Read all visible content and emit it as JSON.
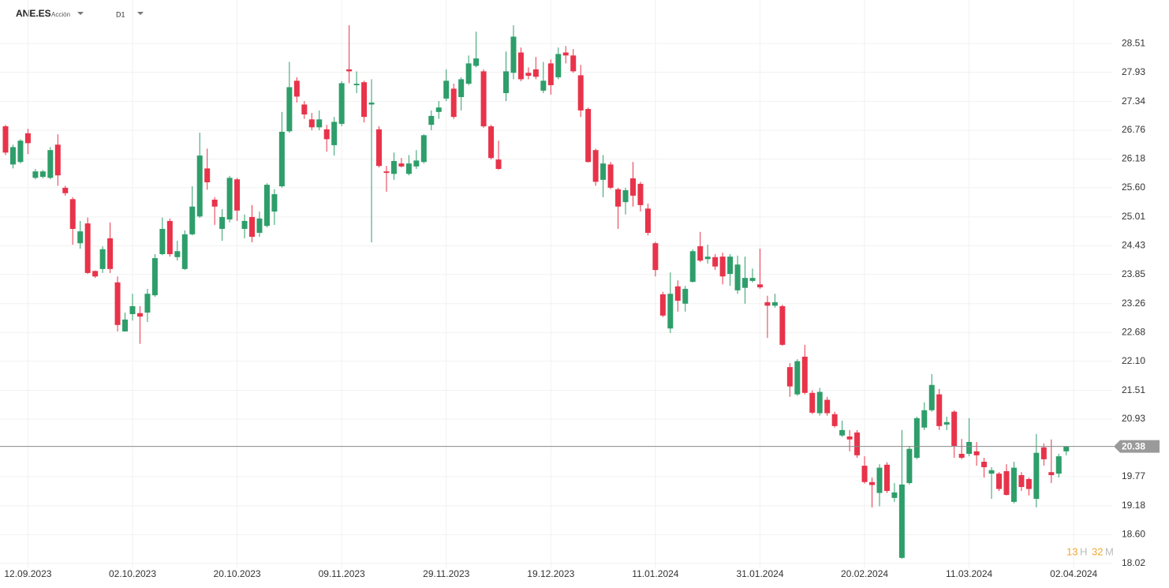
{
  "header": {
    "symbol": "ANE.ES",
    "kind": "Acción",
    "timeframe": "D1"
  },
  "countdown": {
    "hours": 13,
    "hours_unit": "H",
    "minutes": 32,
    "minutes_unit": "M"
  },
  "chart_data": {
    "type": "candlestick",
    "up_color": "#2e9e6a",
    "down_color": "#e8334a",
    "grid": true,
    "last_price": 20.38,
    "last_price_color": "#9a9a9a",
    "ylim": [
      17.92,
      29.31
    ],
    "yticks": [
      28.51,
      27.93,
      27.34,
      26.76,
      26.18,
      {
        "value": 25.6,
        "label": "25.60"
      },
      25.01,
      24.43,
      23.85,
      23.26,
      22.68,
      {
        "value": 22.1,
        "label": "22.10"
      },
      21.51,
      20.93,
      19.77,
      19.18,
      {
        "value": 18.6,
        "label": "18.60"
      },
      18.02
    ],
    "categories": [
      null,
      null,
      null,
      "12.09.2023",
      null,
      null,
      null,
      null,
      null,
      null,
      null,
      null,
      null,
      null,
      null,
      null,
      null,
      "02.10.2023",
      null,
      null,
      null,
      null,
      null,
      null,
      null,
      null,
      null,
      null,
      null,
      null,
      null,
      "20.10.2023",
      null,
      null,
      null,
      null,
      null,
      null,
      null,
      null,
      null,
      null,
      null,
      null,
      null,
      "09.11.2023",
      null,
      null,
      null,
      null,
      null,
      null,
      null,
      null,
      null,
      null,
      null,
      null,
      null,
      "29.11.2023",
      null,
      null,
      null,
      null,
      null,
      null,
      null,
      null,
      null,
      null,
      null,
      null,
      null,
      "19.12.2023",
      null,
      null,
      null,
      null,
      null,
      null,
      null,
      null,
      null,
      null,
      null,
      null,
      null,
      "11.01.2024",
      null,
      null,
      null,
      null,
      null,
      null,
      null,
      null,
      null,
      null,
      null,
      null,
      null,
      "31.01.2024",
      null,
      null,
      null,
      null,
      null,
      null,
      null,
      null,
      null,
      null,
      null,
      null,
      null,
      "20.02.2024",
      null,
      null,
      null,
      null,
      null,
      null,
      null,
      null,
      null,
      null,
      null,
      null,
      null,
      "11.03.2024",
      null,
      null,
      null,
      null,
      null,
      null,
      null,
      null,
      null,
      null,
      null,
      null,
      null,
      "02.04.2024"
    ],
    "open": [
      26.84,
      26.07,
      26.12,
      26.7,
      25.8,
      25.82,
      25.8,
      26.47,
      25.6,
      25.37,
      24.48,
      24.88,
      23.92,
      23.96,
      24.58,
      23.69,
      22.7,
      23.05,
      23.07,
      23.08,
      23.43,
      24.26,
      24.93,
      24.2,
      23.96,
      24.66,
      25.02,
      25.99,
      25.36,
      24.77,
      24.96,
      25.77,
      24.77,
      25.01,
      24.69,
      24.83,
      25.12,
      25.63,
      26.74,
      27.76,
      27.28,
      26.98,
      26.82,
      26.78,
      26.46,
      26.89,
      27.99,
      27.67,
      27.73,
      27.28,
      26.78,
      25.93,
      25.88,
      26.09,
      25.88,
      26.03,
      26.12,
      26.87,
      27.13,
      27.4,
      27.6,
      27.43,
      27.7,
      28.06,
      27.95,
      26.84,
      26.17,
      27.51,
      27.92,
      28.33,
      27.92,
      27.99,
      27.56,
      28.11,
      27.83,
      28.33,
      28.27,
      27.87,
      27.19,
      26.36,
      25.76,
      26.07,
      25.57,
      25.31,
      25.79,
      25.68,
      25.18,
      24.48,
      23.45,
      22.76,
      23.61,
      23.26,
      23.7,
      24.42,
      24.16,
      24.2,
      24.21,
      23.86,
      23.53,
      23.58,
      23.72,
      23.65,
      23.29,
      23.22,
      23.21,
      21.98,
      21.43,
      22.19,
      21.46,
      21.05,
      21.32,
      21.03,
      20.6,
      20.58,
      20.66,
      19.99,
      19.66,
      19.44,
      20.01,
      19.34,
      18.13,
      19.64,
      20.15,
      20.76,
      21.11,
      21.43,
      20.82,
      21.08,
      20.23,
      20.23,
      20.28,
      20.07,
      19.83,
      19.83,
      19.88,
      19.26,
      19.8,
      19.72,
      19.32,
      20.36,
      19.86,
      19.83,
      20.28,
      null
    ],
    "high": [
      26.87,
      26.47,
      26.58,
      26.79,
      25.98,
      25.96,
      26.42,
      26.68,
      25.64,
      25.41,
      24.93,
      25.0,
      23.93,
      24.42,
      24.9,
      23.81,
      23.08,
      23.46,
      23.21,
      23.56,
      24.26,
      25.0,
      24.98,
      24.53,
      24.74,
      25.63,
      26.71,
      26.39,
      25.41,
      25.17,
      25.84,
      25.8,
      25.06,
      25.25,
      25.12,
      25.69,
      25.57,
      27.13,
      28.14,
      27.83,
      27.35,
      27.11,
      27.16,
      26.87,
      27.03,
      27.75,
      28.88,
      27.95,
      27.76,
      27.79,
      26.84,
      26.04,
      26.31,
      26.2,
      26.26,
      26.36,
      26.68,
      27.16,
      27.35,
      27.99,
      27.7,
      27.83,
      28.27,
      28.75,
      27.99,
      26.87,
      26.55,
      28.35,
      28.88,
      28.43,
      28.03,
      28.24,
      28.14,
      28.19,
      28.43,
      28.46,
      28.4,
      28.08,
      27.22,
      26.39,
      26.26,
      26.12,
      25.6,
      25.6,
      26.12,
      25.72,
      25.28,
      24.51,
      23.5,
      23.89,
      23.73,
      23.62,
      24.36,
      24.71,
      24.45,
      24.26,
      24.29,
      24.26,
      24.23,
      24.21,
      23.97,
      24.37,
      23.42,
      23.46,
      23.24,
      22.06,
      22.14,
      22.43,
      21.51,
      21.56,
      21.38,
      21.08,
      20.9,
      20.71,
      20.71,
      20.18,
      19.75,
      20.02,
      20.06,
      19.64,
      20.71,
      20.39,
      20.98,
      21.27,
      21.84,
      21.54,
      20.98,
      21.11,
      20.53,
      20.95,
      20.47,
      20.15,
      19.96,
      19.86,
      20.02,
      20.07,
      19.86,
      19.75,
      20.63,
      20.44,
      20.52,
      20.23,
      20.39,
      null
    ],
    "low": [
      26.26,
      25.99,
      26.09,
      26.28,
      25.77,
      25.79,
      25.77,
      25.64,
      25.44,
      24.45,
      24.37,
      23.86,
      23.78,
      23.88,
      23.88,
      22.7,
      22.7,
      22.92,
      22.45,
      22.89,
      23.4,
      24.24,
      24.21,
      24.13,
      23.94,
      24.64,
      24.99,
      25.56,
      24.85,
      24.53,
      24.9,
      24.93,
      24.58,
      24.5,
      24.61,
      24.8,
      24.85,
      25.6,
      26.71,
      27.32,
      26.99,
      26.76,
      26.76,
      26.33,
      26.25,
      26.84,
      27.71,
      27.51,
      26.92,
      24.5,
      26.01,
      25.52,
      25.76,
      26.01,
      25.85,
      25.98,
      26.09,
      26.76,
      26.99,
      27.35,
      26.99,
      27.16,
      27.67,
      28.03,
      26.81,
      26.17,
      25.96,
      27.35,
      27.79,
      27.75,
      27.79,
      27.79,
      27.51,
      27.48,
      27.79,
      28.11,
      27.92,
      27.03,
      26.11,
      25.64,
      25.41,
      25.57,
      24.77,
      25.06,
      25.22,
      25.12,
      24.64,
      23.81,
      22.99,
      22.67,
      23.1,
      23.1,
      23.69,
      24.1,
      24.07,
      23.94,
      23.65,
      23.62,
      23.46,
      23.26,
      23.69,
      23.56,
      22.57,
      23.18,
      22.41,
      21.38,
      21.4,
      21.43,
      21.03,
      21.0,
      21.0,
      20.76,
      20.57,
      20.28,
      20.15,
      19.63,
      19.15,
      19.17,
      19.44,
      19.26,
      18.11,
      19.61,
      20.12,
      20.71,
      21.08,
      20.71,
      20.71,
      20.15,
      20.12,
      20.18,
      19.99,
      19.75,
      19.32,
      19.48,
      19.39,
      19.23,
      19.48,
      19.39,
      19.15,
      19.99,
      19.64,
      19.75,
      20.2,
      null
    ],
    "close": [
      26.31,
      26.42,
      26.55,
      26.5,
      25.93,
      25.93,
      26.36,
      25.85,
      25.49,
      24.77,
      24.72,
      23.88,
      23.81,
      24.36,
      23.96,
      22.83,
      22.94,
      23.21,
      23.0,
      23.46,
      24.18,
      24.77,
      24.26,
      24.32,
      24.66,
      25.22,
      26.25,
      25.71,
      25.22,
      25.01,
      25.8,
      25.14,
      24.93,
      24.61,
      24.98,
      25.66,
      25.47,
      26.73,
      27.63,
      27.44,
      27.08,
      26.82,
      26.98,
      26.58,
      26.93,
      27.71,
      27.95,
      27.7,
      27.03,
      27.32,
      26.04,
      25.9,
      26.14,
      26.03,
      26.09,
      26.15,
      26.66,
      27.05,
      27.22,
      27.76,
      27.03,
      27.79,
      28.11,
      28.21,
      26.84,
      26.2,
      25.98,
      27.95,
      28.65,
      27.79,
      27.86,
      27.84,
      27.76,
      27.67,
      28.3,
      28.27,
      27.95,
      27.16,
      26.12,
      25.72,
      26.09,
      25.6,
      25.22,
      25.55,
      25.44,
      25.25,
      24.69,
      23.94,
      23.02,
      23.46,
      23.32,
      23.56,
      24.32,
      24.13,
      24.21,
      24.01,
      23.81,
      24.21,
      24.05,
      23.78,
      23.78,
      23.59,
      23.22,
      23.29,
      22.43,
      21.59,
      22.1,
      21.46,
      21.06,
      21.48,
      21.05,
      20.79,
      20.71,
      20.52,
      20.2,
      19.66,
      19.6,
      19.95,
      19.48,
      19.45,
      19.61,
      20.33,
      20.95,
      21.11,
      21.62,
      20.79,
      20.87,
      20.39,
      20.15,
      20.47,
      20.2,
      19.96,
      19.9,
      19.52,
      19.4,
      19.95,
      19.56,
      19.52,
      20.25,
      20.12,
      19.8,
      20.18,
      20.38,
      null
    ]
  }
}
